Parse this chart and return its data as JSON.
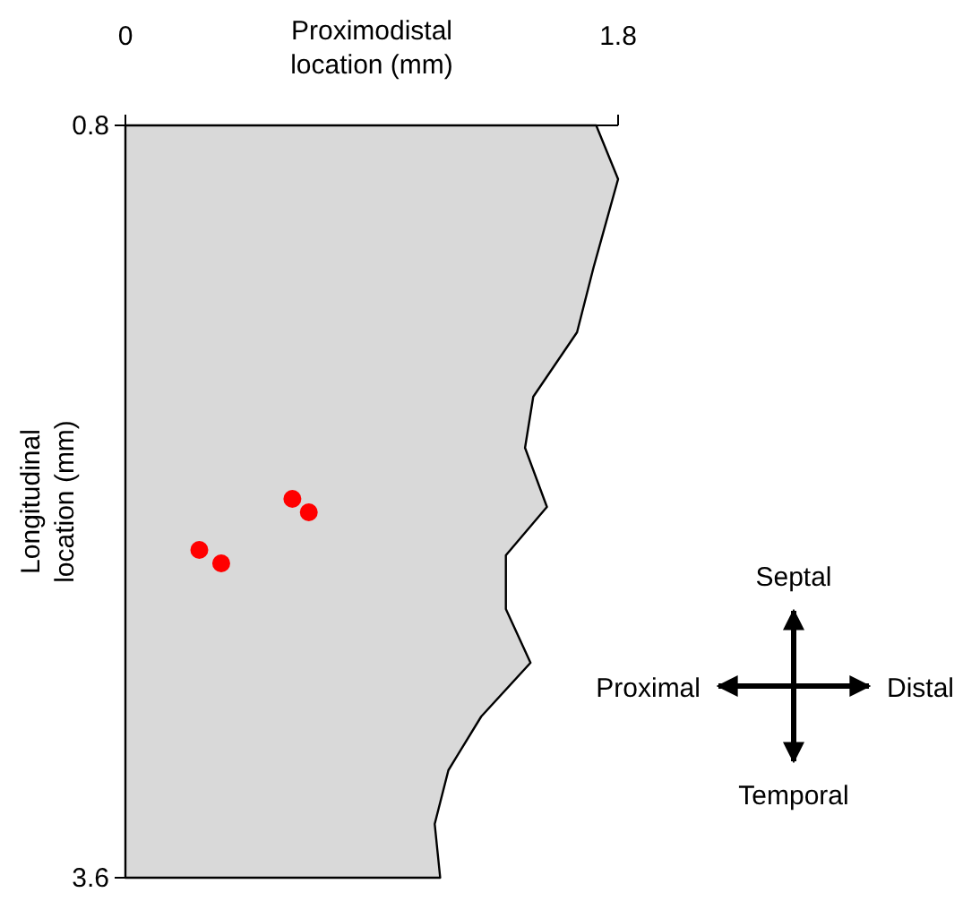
{
  "chart_data": {
    "type": "area",
    "orientation": "horizontal",
    "xlabel": "Proximodistal location (mm)",
    "ylabel": "Longitudinal location (mm)",
    "xlim": [
      0,
      1.8
    ],
    "xticks": [
      0,
      1.8
    ],
    "ylim": [
      3.6,
      0.8
    ],
    "yticks": [
      0.8,
      3.6
    ],
    "grid": false,
    "series": [
      {
        "color": "#d9d9d9",
        "x": [
          0.8,
          1.0,
          1.33,
          1.57,
          1.81,
          2.0,
          2.22,
          2.4,
          2.6,
          2.8,
          3.0,
          3.2,
          3.4,
          3.6
        ],
        "values": [
          1.72,
          1.8,
          1.71,
          1.65,
          1.49,
          1.46,
          1.54,
          1.39,
          1.39,
          1.48,
          1.3,
          1.18,
          1.13,
          1.15
        ]
      },
      {
        "type": "scatter",
        "marker": "circle",
        "color": "#ff0000",
        "x": [
          2.19,
          2.24,
          2.38,
          2.43
        ],
        "values": [
          0.61,
          0.67,
          0.27,
          0.35
        ]
      }
    ],
    "annotations": [
      "Septal",
      "Proximal",
      "Distal",
      "Temporal"
    ]
  }
}
